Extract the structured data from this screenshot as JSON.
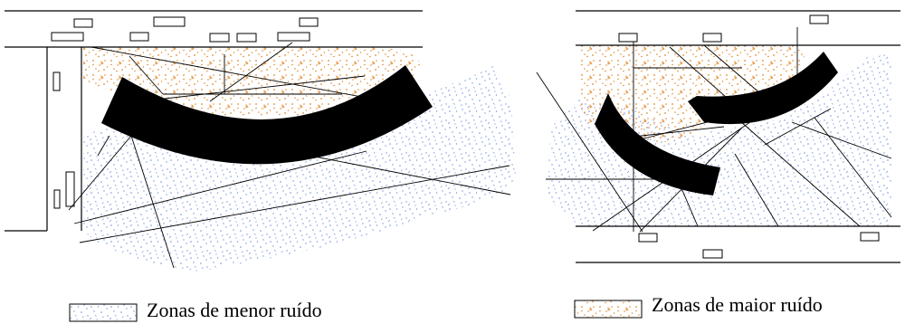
{
  "legend": {
    "low_noise_label": "Zonas de menor ruído",
    "high_noise_label": "Zonas de maior ruído"
  },
  "colors": {
    "low_noise_speckle": "#6f8fe0",
    "high_noise_speckle": "#e08a2e",
    "tunnel": "#000000",
    "lines": "#000000"
  }
}
